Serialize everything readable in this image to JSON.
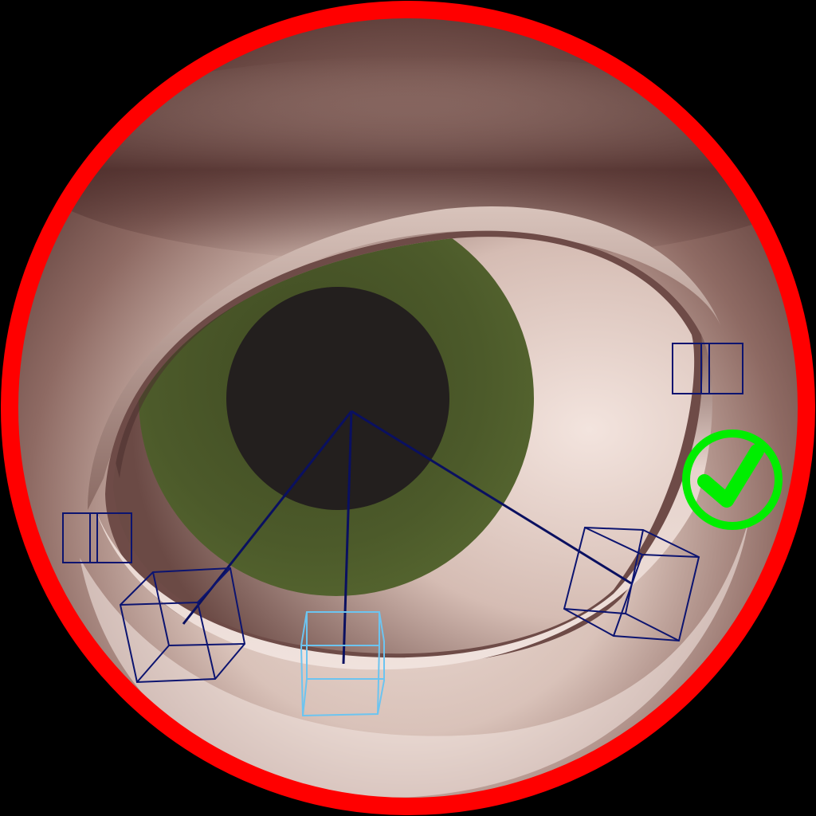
{
  "viewport": {
    "mode": "3d-rig-closeup",
    "subject": "eye-rig",
    "background_color": "#000000",
    "lens_border_color": "#ff0000"
  },
  "status": {
    "icon": "checkmark-icon",
    "color": "#00ee00",
    "state": "ok"
  },
  "colors": {
    "iris": "#4c5a2a",
    "pupil": "#231f1e",
    "sclera": "#e8d6cf",
    "skin": "#a88a80",
    "bone_line": "#0a1060",
    "control_dark": "#0c1470",
    "control_selected": "#6cc4f0"
  },
  "rig": {
    "controls": [
      {
        "name": "eye-aim-control-left",
        "selected": false
      },
      {
        "name": "eye-aim-control-bottom",
        "selected": true
      },
      {
        "name": "eye-aim-control-right",
        "selected": false
      },
      {
        "name": "eyelid-corner-control-left",
        "selected": false
      },
      {
        "name": "eyelid-corner-control-right",
        "selected": false
      }
    ]
  }
}
